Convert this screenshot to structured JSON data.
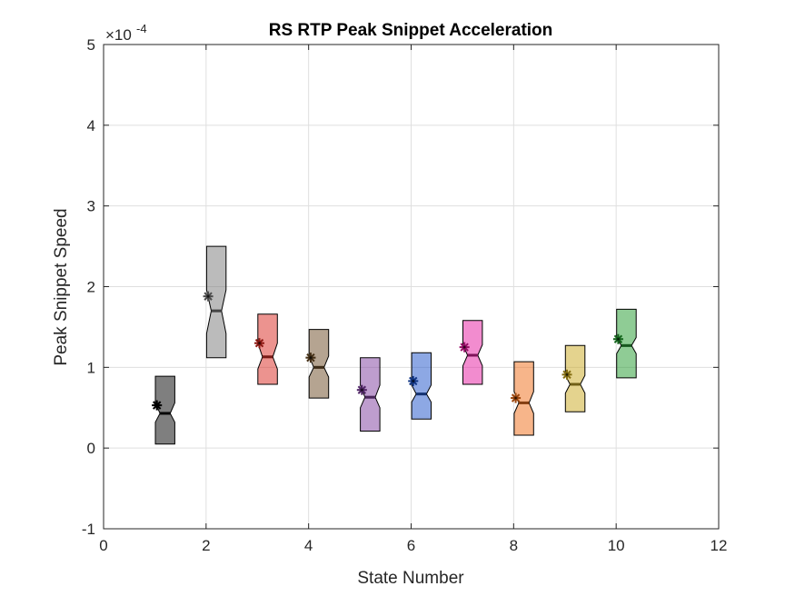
{
  "chart_data": {
    "type": "boxplot",
    "title": "RS  RTP Peak Snippet Acceleration",
    "xlabel": "State Number",
    "ylabel": "Peak Snippet Speed",
    "y_exponent_base": "×10",
    "y_exponent_power": "-4",
    "xlim": [
      0,
      12
    ],
    "ylim": [
      -1,
      5
    ],
    "xticks": [
      0,
      2,
      4,
      6,
      8,
      10,
      12
    ],
    "xtick_labels": [
      "0",
      "2",
      "4",
      "6",
      "8",
      "10",
      "12"
    ],
    "yticks": [
      -1,
      0,
      1,
      2,
      3,
      4,
      5
    ],
    "ytick_labels": [
      "-1",
      "0",
      "1",
      "2",
      "3",
      "4",
      "5"
    ],
    "grid": true,
    "y_units_note": "values in units of 1e-4",
    "boxes": [
      {
        "state": 1,
        "q1": 0.05,
        "median": 0.43,
        "q3": 0.89,
        "notch_lo": 0.32,
        "notch_hi": 0.56,
        "mean": 0.53,
        "color": "#000000"
      },
      {
        "state": 2,
        "q1": 1.12,
        "median": 1.7,
        "q3": 2.5,
        "notch_lo": 1.42,
        "notch_hi": 1.96,
        "mean": 1.88,
        "color": "#777777"
      },
      {
        "state": 3,
        "q1": 0.79,
        "median": 1.13,
        "q3": 1.66,
        "notch_lo": 0.98,
        "notch_hi": 1.3,
        "mean": 1.3,
        "color": "#d9281f"
      },
      {
        "state": 4,
        "q1": 0.62,
        "median": 1.0,
        "q3": 1.47,
        "notch_lo": 0.88,
        "notch_hi": 1.14,
        "mean": 1.12,
        "color": "#6b4a24"
      },
      {
        "state": 5,
        "q1": 0.21,
        "median": 0.63,
        "q3": 1.12,
        "notch_lo": 0.5,
        "notch_hi": 0.78,
        "mean": 0.72,
        "color": "#7d3c9e"
      },
      {
        "state": 6,
        "q1": 0.36,
        "median": 0.67,
        "q3": 1.18,
        "notch_lo": 0.57,
        "notch_hi": 0.78,
        "mean": 0.83,
        "color": "#1b52c9"
      },
      {
        "state": 7,
        "q1": 0.79,
        "median": 1.15,
        "q3": 1.58,
        "notch_lo": 1.02,
        "notch_hi": 1.28,
        "mean": 1.25,
        "color": "#e6199f"
      },
      {
        "state": 8,
        "q1": 0.16,
        "median": 0.56,
        "q3": 1.07,
        "notch_lo": 0.43,
        "notch_hi": 0.7,
        "mean": 0.62,
        "color": "#ef6c16"
      },
      {
        "state": 9,
        "q1": 0.45,
        "median": 0.79,
        "q3": 1.27,
        "notch_lo": 0.68,
        "notch_hi": 0.9,
        "mean": 0.91,
        "color": "#c9a81e"
      },
      {
        "state": 10,
        "q1": 0.87,
        "median": 1.27,
        "q3": 1.72,
        "notch_lo": 1.17,
        "notch_hi": 1.37,
        "mean": 1.35,
        "color": "#1f9a2c"
      }
    ]
  }
}
